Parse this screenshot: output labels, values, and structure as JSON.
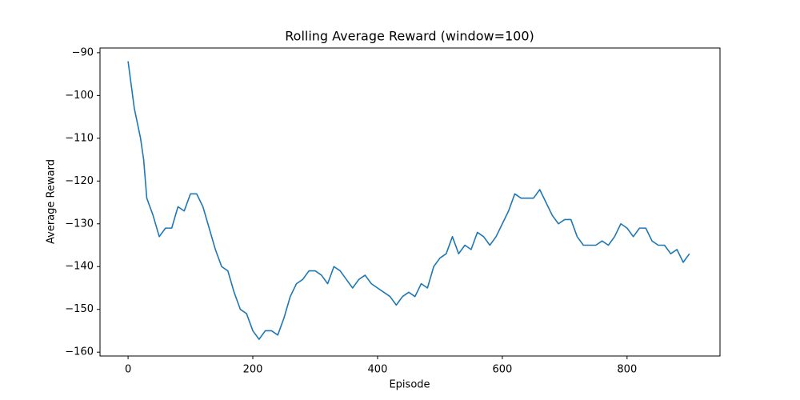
{
  "chart_data": {
    "type": "line",
    "title": "Rolling Average Reward (window=100)",
    "x_label": "Episode",
    "y_label": "Average Reward",
    "x": [
      0,
      10,
      20,
      25,
      30,
      40,
      50,
      60,
      70,
      80,
      90,
      100,
      110,
      120,
      130,
      140,
      150,
      160,
      170,
      180,
      190,
      200,
      210,
      220,
      230,
      240,
      250,
      260,
      270,
      280,
      290,
      300,
      310,
      320,
      330,
      340,
      350,
      360,
      370,
      380,
      390,
      400,
      410,
      420,
      430,
      440,
      450,
      460,
      470,
      480,
      490,
      500,
      510,
      520,
      530,
      540,
      550,
      560,
      570,
      580,
      590,
      600,
      610,
      620,
      630,
      640,
      650,
      660,
      670,
      680,
      690,
      700,
      710,
      720,
      730,
      740,
      750,
      760,
      770,
      780,
      790,
      800,
      810,
      820,
      830,
      840,
      850,
      860,
      870,
      880,
      890,
      900
    ],
    "series": [
      {
        "name": "Average Reward",
        "color": "#1f77b4",
        "values": [
          -92,
          -103,
          -110,
          -115,
          -124,
          -128,
          -133,
          -131,
          -131,
          -126,
          -127,
          -123,
          -123,
          -126,
          -131,
          -136,
          -140,
          -141,
          -146,
          -150,
          -151,
          -155,
          -157,
          -155,
          -155,
          -156,
          -152,
          -147,
          -144,
          -143,
          -141,
          -141,
          -142,
          -144,
          -140,
          -141,
          -143,
          -145,
          -143,
          -142,
          -144,
          -145,
          -146,
          -147,
          -149,
          -147,
          -146,
          -147,
          -144,
          -145,
          -140,
          -138,
          -137,
          -133,
          -137,
          -135,
          -136,
          -132,
          -133,
          -135,
          -133,
          -130,
          -127,
          -123,
          -124,
          -124,
          -124,
          -122,
          -125,
          -128,
          -130,
          -129,
          -129,
          -133,
          -135,
          -135,
          -135,
          -134,
          -135,
          -133,
          -130,
          -131,
          -133,
          -131,
          -131,
          -134,
          -135,
          -135,
          -137,
          -136,
          -139,
          -137
        ]
      }
    ],
    "xlim": [
      -45,
      949
    ],
    "ylim": [
      -160.9,
      -88.9
    ],
    "xticks": [
      0,
      200,
      400,
      600,
      800
    ],
    "yticks": [
      {
        "value": -160,
        "label": "−160"
      },
      {
        "value": -150,
        "label": "−150"
      },
      {
        "value": -140,
        "label": "−140"
      },
      {
        "value": -130,
        "label": "−130"
      },
      {
        "value": -120,
        "label": "−120"
      },
      {
        "value": -110,
        "label": "−110"
      },
      {
        "value": -100,
        "label": "−100"
      },
      {
        "value": -90,
        "label": "−90"
      }
    ],
    "grid": false
  }
}
